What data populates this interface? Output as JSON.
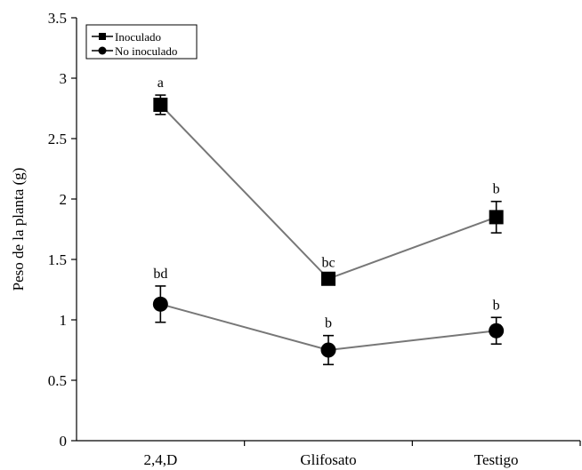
{
  "chart_data": {
    "type": "line",
    "title": "",
    "xlabel": "",
    "ylabel": "Peso de la planta (g)",
    "categories": [
      "2,4,D",
      "Glifosato",
      "Testigo"
    ],
    "ylim": [
      0,
      3.5
    ],
    "yticks": [
      0,
      0.5,
      1,
      1.5,
      2,
      2.5,
      3,
      3.5
    ],
    "ytick_labels": [
      "0",
      "0.5",
      "1",
      "1.5",
      "2",
      "2.5",
      "3",
      "3.5"
    ],
    "grid": false,
    "legend_position": "top-left",
    "series": [
      {
        "name": "Inoculado",
        "marker": "square",
        "color": "#000000",
        "line_color": "#777777",
        "values": [
          2.78,
          1.34,
          1.85
        ],
        "errors": [
          0.08,
          0.03,
          0.13
        ],
        "labels": [
          "a",
          "bc",
          "b"
        ]
      },
      {
        "name": "No inoculado",
        "marker": "circle",
        "color": "#000000",
        "line_color": "#777777",
        "values": [
          1.13,
          0.75,
          0.91
        ],
        "errors": [
          0.15,
          0.12,
          0.11
        ],
        "labels": [
          "bd",
          "b",
          "b"
        ]
      }
    ]
  }
}
